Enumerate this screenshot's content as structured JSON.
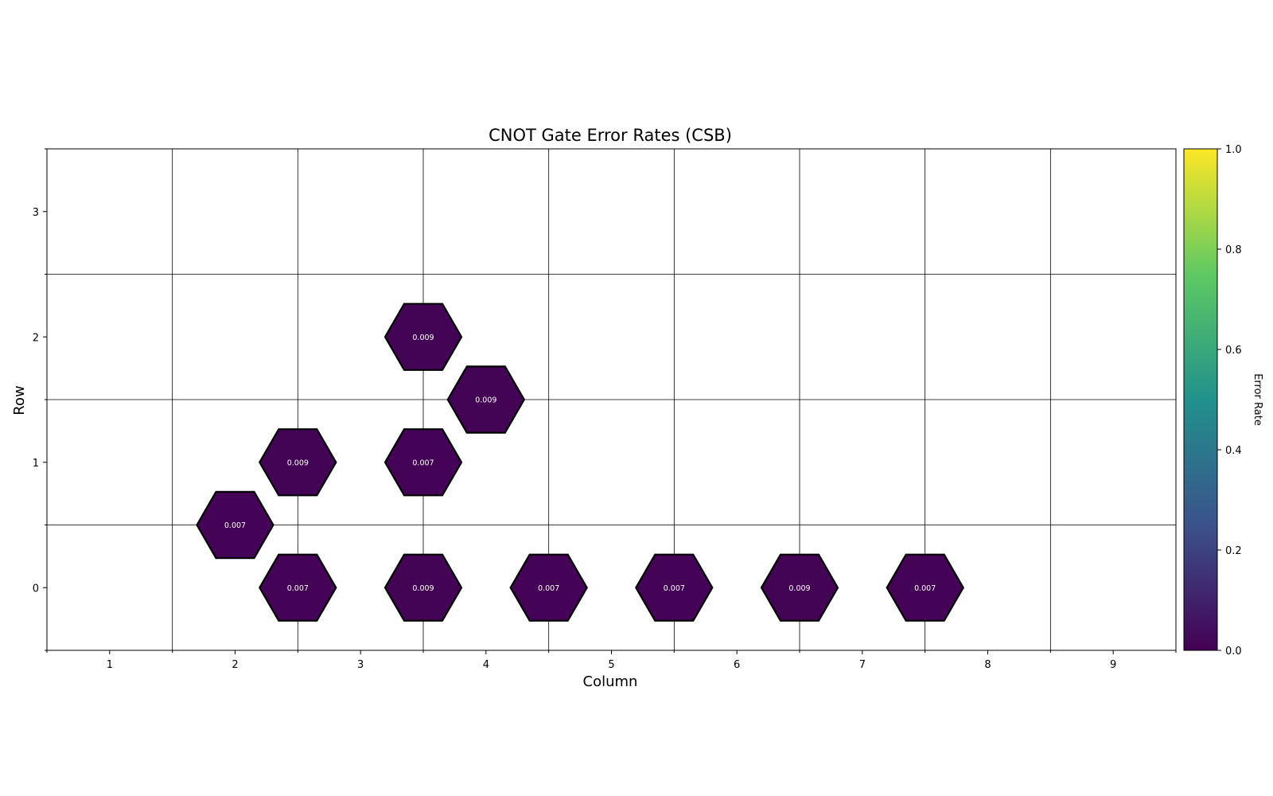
{
  "chart_data": {
    "type": "heatmap",
    "title": "CNOT Gate Error Rates (CSB)",
    "xlabel": "Column",
    "ylabel": "Row",
    "xlim": [
      0.5,
      9.5
    ],
    "ylim": [
      -0.5,
      3.5
    ],
    "x_ticks": [
      1,
      2,
      3,
      4,
      5,
      6,
      7,
      8,
      9
    ],
    "y_ticks": [
      0,
      1,
      2,
      3
    ],
    "x_grid": [
      1.5,
      2.5,
      3.5,
      4.5,
      5.5,
      6.5,
      7.5,
      8.5
    ],
    "y_grid": [
      0.5,
      1.5,
      2.5
    ],
    "grid": true,
    "colorbar": {
      "label": "Error Rate",
      "min": 0.0,
      "max": 1.0,
      "ticks": [
        "0.0",
        "0.2",
        "0.4",
        "0.6",
        "0.8",
        "1.0"
      ],
      "colormap": "viridis",
      "colors": [
        "#440154",
        "#3b528b",
        "#21918c",
        "#5ec962",
        "#fde725"
      ]
    },
    "cells": [
      {
        "x": 2.5,
        "y": 0,
        "value": 0.007,
        "label": "0.007"
      },
      {
        "x": 3.5,
        "y": 0,
        "value": 0.009,
        "label": "0.009"
      },
      {
        "x": 4.5,
        "y": 0,
        "value": 0.007,
        "label": "0.007"
      },
      {
        "x": 5.5,
        "y": 0,
        "value": 0.007,
        "label": "0.007"
      },
      {
        "x": 6.5,
        "y": 0,
        "value": 0.009,
        "label": "0.009"
      },
      {
        "x": 7.5,
        "y": 0,
        "value": 0.007,
        "label": "0.007"
      },
      {
        "x": 2,
        "y": 0.5,
        "value": 0.007,
        "label": "0.007"
      },
      {
        "x": 2.5,
        "y": 1,
        "value": 0.009,
        "label": "0.009"
      },
      {
        "x": 3.5,
        "y": 1,
        "value": 0.007,
        "label": "0.007"
      },
      {
        "x": 4,
        "y": 1.5,
        "value": 0.009,
        "label": "0.009"
      },
      {
        "x": 3.5,
        "y": 2,
        "value": 0.009,
        "label": "0.009"
      }
    ]
  }
}
